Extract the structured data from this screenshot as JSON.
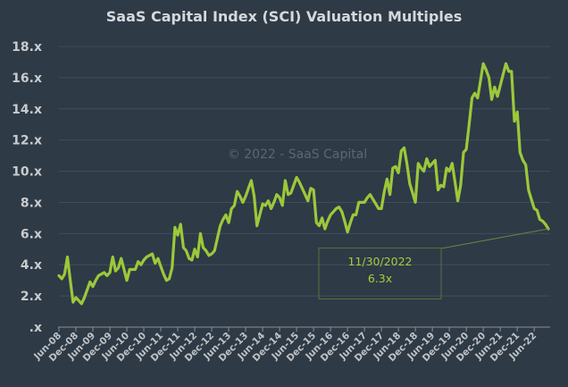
{
  "chart_data": {
    "type": "line",
    "title": "SaaS Capital Index (SCI) Valuation Multiples",
    "watermark": "© 2022 - SaaS Capital",
    "xlabel": "",
    "ylabel": "",
    "ylim": [
      0,
      18
    ],
    "y_ticks": [
      ".x",
      "2.x",
      "4.x",
      "6.x",
      "8.x",
      "10.x",
      "12.x",
      "14.x",
      "16.x",
      "18.x"
    ],
    "x_tick_labels": [
      "Jun-08",
      "Dec-08",
      "Jun-09",
      "Dec-09",
      "Jun-10",
      "Dec-10",
      "Jun-11",
      "Dec-11",
      "Jun-12",
      "Dec-12",
      "Jun-13",
      "Dec-13",
      "Jun-14",
      "Dec-14",
      "Jun-15",
      "Dec-15",
      "Jun-16",
      "Dec-16",
      "Jun-17",
      "Dec-17",
      "Jun-18",
      "Dec-18",
      "Jun-19",
      "Dec-19",
      "Jun-20",
      "Dec-20",
      "Jun-21",
      "Dec-21",
      "Jun-22"
    ],
    "grid": true,
    "line_color": "#9cc83a",
    "annotation": {
      "date": "11/30/2022",
      "value": "6.3x"
    },
    "series": [
      {
        "x": [
          "2008-06",
          "2008-07",
          "2008-08",
          "2008-09",
          "2008-10",
          "2008-11",
          "2008-12",
          "2009-01",
          "2009-02",
          "2009-03",
          "2009-04",
          "2009-05",
          "2009-06",
          "2009-07",
          "2009-08",
          "2009-09",
          "2009-10",
          "2009-11",
          "2009-12",
          "2010-01",
          "2010-02",
          "2010-03",
          "2010-04",
          "2010-05",
          "2010-06",
          "2010-07",
          "2010-08",
          "2010-09",
          "2010-10",
          "2010-11",
          "2010-12",
          "2011-01",
          "2011-02",
          "2011-03",
          "2011-04",
          "2011-05",
          "2011-06",
          "2011-07",
          "2011-08",
          "2011-09",
          "2011-10",
          "2011-11",
          "2011-12",
          "2012-01",
          "2012-02",
          "2012-03",
          "2012-04",
          "2012-05",
          "2012-06",
          "2012-07",
          "2012-08",
          "2012-09",
          "2012-10",
          "2012-11",
          "2012-12",
          "2013-01",
          "2013-02",
          "2013-03",
          "2013-04",
          "2013-05",
          "2013-06",
          "2013-07",
          "2013-08",
          "2013-09",
          "2013-10",
          "2013-11",
          "2013-12",
          "2014-01",
          "2014-02",
          "2014-03",
          "2014-04",
          "2014-05",
          "2014-06",
          "2014-07",
          "2014-08",
          "2014-09",
          "2014-10",
          "2014-11",
          "2014-12",
          "2015-01",
          "2015-02",
          "2015-03",
          "2015-04",
          "2015-05",
          "2015-06",
          "2015-07",
          "2015-08",
          "2015-09",
          "2015-10",
          "2015-11",
          "2015-12",
          "2016-01",
          "2016-02",
          "2016-03",
          "2016-04",
          "2016-05",
          "2016-06",
          "2016-07",
          "2016-08",
          "2016-09",
          "2016-10",
          "2016-11",
          "2016-12",
          "2017-01",
          "2017-02",
          "2017-03",
          "2017-04",
          "2017-05",
          "2017-06",
          "2017-07",
          "2017-08",
          "2017-09",
          "2017-10",
          "2017-11",
          "2017-12",
          "2018-01",
          "2018-02",
          "2018-03",
          "2018-04",
          "2018-05",
          "2018-06",
          "2018-07",
          "2018-08",
          "2018-09",
          "2018-10",
          "2018-11",
          "2018-12",
          "2019-01",
          "2019-02",
          "2019-03",
          "2019-04",
          "2019-05",
          "2019-06",
          "2019-07",
          "2019-08",
          "2019-09",
          "2019-10",
          "2019-11",
          "2019-12",
          "2020-01",
          "2020-02",
          "2020-03",
          "2020-04",
          "2020-05",
          "2020-06",
          "2020-07",
          "2020-08",
          "2020-09",
          "2020-10",
          "2020-11",
          "2020-12",
          "2021-01",
          "2021-02",
          "2021-03",
          "2021-04",
          "2021-05",
          "2021-06",
          "2021-07",
          "2021-08",
          "2021-09",
          "2021-10",
          "2021-11",
          "2021-12",
          "2022-01",
          "2022-02",
          "2022-03",
          "2022-04",
          "2022-05",
          "2022-06",
          "2022-07",
          "2022-08",
          "2022-09",
          "2022-10",
          "2022-11"
        ],
        "values": [
          3.3,
          3.1,
          3.4,
          4.5,
          3.0,
          1.6,
          1.9,
          1.7,
          1.5,
          1.9,
          2.4,
          2.9,
          2.6,
          3.0,
          3.3,
          3.4,
          3.5,
          3.3,
          3.5,
          4.5,
          3.6,
          3.8,
          4.4,
          3.7,
          3.0,
          3.7,
          3.7,
          3.7,
          4.2,
          4.0,
          4.3,
          4.5,
          4.6,
          4.7,
          4.1,
          4.4,
          3.9,
          3.4,
          3.0,
          3.1,
          3.8,
          6.4,
          5.9,
          6.6,
          5.1,
          4.9,
          4.4,
          4.3,
          5.0,
          4.5,
          6.0,
          5.1,
          4.9,
          4.6,
          4.7,
          4.9,
          5.7,
          6.5,
          6.9,
          7.2,
          6.7,
          7.6,
          7.8,
          8.7,
          8.4,
          8.0,
          8.4,
          8.9,
          9.4,
          8.4,
          6.5,
          7.2,
          7.9,
          7.8,
          8.1,
          7.6,
          8.0,
          8.5,
          8.3,
          7.8,
          9.4,
          8.5,
          8.6,
          9.1,
          9.6,
          9.3,
          8.9,
          8.5,
          8.1,
          8.9,
          8.8,
          6.7,
          6.5,
          7.0,
          6.3,
          6.8,
          7.2,
          7.4,
          7.6,
          7.7,
          7.4,
          6.8,
          6.1,
          6.7,
          7.2,
          7.2,
          8.0,
          8.0,
          8.0,
          8.3,
          8.5,
          8.2,
          7.9,
          7.6,
          7.6,
          8.7,
          9.5,
          8.5,
          10.2,
          10.3,
          9.9,
          11.3,
          11.5,
          10.5,
          9.2,
          8.6,
          8.0,
          10.5,
          10.2,
          10.0,
          10.8,
          10.3,
          10.5,
          10.7,
          8.8,
          9.1,
          9.0,
          10.2,
          10.0,
          10.5,
          9.3,
          8.1,
          9.1,
          11.2,
          11.4,
          13.0,
          14.7,
          15.0,
          14.7,
          15.8,
          16.9,
          16.5,
          16.0,
          14.6,
          15.4,
          14.8,
          15.5,
          16.2,
          16.9,
          16.4,
          16.4,
          13.2,
          13.8,
          11.2,
          10.7,
          10.4,
          8.8,
          8.2,
          7.6,
          7.5,
          6.9,
          6.8,
          6.6,
          6.3
        ]
      }
    ]
  }
}
